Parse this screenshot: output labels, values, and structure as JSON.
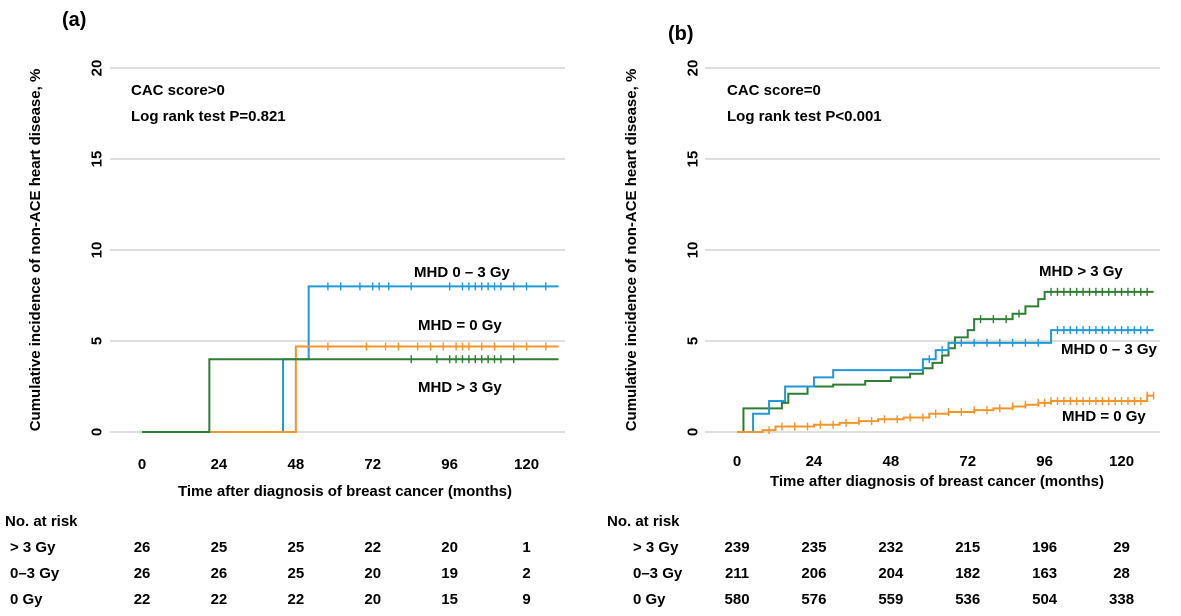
{
  "colors": {
    "MHD > 3 Gy": "#2e7d32",
    "MHD 0 – 3 Gy": "#1f9ad6",
    "MHD = 0 Gy": "#f0962a"
  },
  "chart_data": [
    {
      "type": "line",
      "panel_label": "(a)",
      "title": "",
      "xlabel": "Time after diagnosis of breast cancer (months)",
      "ylabel": "Cumulative incidence of non-ACE heart disease, %",
      "xlim": [
        -10,
        132
      ],
      "ylim": [
        0,
        20
      ],
      "xticks": [
        0,
        24,
        48,
        72,
        96,
        120
      ],
      "yticks": [
        0,
        5,
        10,
        15,
        20
      ],
      "grid": "horizontal",
      "annotation": [
        "CAC score>0",
        "Log rank test P=0.821"
      ],
      "series": [
        {
          "name": "MHD 0 – 3 Gy",
          "steps": [
            [
              0,
              0
            ],
            [
              44,
              4
            ],
            [
              52,
              8
            ]
          ],
          "end_x": 130,
          "censors": [
            58,
            62,
            68,
            72,
            74,
            77,
            84,
            96,
            100,
            102,
            104,
            106,
            108,
            110,
            112,
            116,
            120,
            126
          ]
        },
        {
          "name": "MHD = 0 Gy",
          "steps": [
            [
              0,
              0
            ],
            [
              48,
              4.7
            ]
          ],
          "end_x": 130,
          "censors": [
            58,
            70,
            76,
            80,
            86,
            90,
            94,
            98,
            100,
            102,
            106,
            110,
            116,
            120,
            126
          ]
        },
        {
          "name": "MHD > 3 Gy",
          "steps": [
            [
              0,
              0
            ],
            [
              21,
              4
            ]
          ],
          "end_x": 130,
          "censors": [
            84,
            92,
            96,
            98,
            100,
            102,
            104,
            106,
            108,
            110,
            112,
            116
          ]
        }
      ],
      "curve_labels": [
        "MHD 0 – 3 Gy",
        "MHD = 0 Gy",
        "MHD > 3 Gy"
      ],
      "risk_table": {
        "title": "No. at risk",
        "times": [
          0,
          24,
          48,
          72,
          96,
          120
        ],
        "rows": [
          {
            "label": "> 3 Gy",
            "values": [
              26,
              25,
              25,
              22,
              20,
              1
            ]
          },
          {
            "label": "0–3 Gy",
            "values": [
              26,
              26,
              25,
              20,
              19,
              2
            ]
          },
          {
            "label": "0 Gy",
            "values": [
              22,
              22,
              22,
              20,
              15,
              9
            ]
          }
        ]
      }
    },
    {
      "type": "line",
      "panel_label": "(b)",
      "title": "",
      "xlabel": "Time after diagnosis of breast cancer (months)",
      "ylabel": "Cumulative incidence of non-ACE heart disease, %",
      "xlim": [
        -10,
        132
      ],
      "ylim": [
        0,
        20
      ],
      "xticks": [
        0,
        24,
        48,
        72,
        96,
        120
      ],
      "yticks": [
        0,
        5,
        10,
        15,
        20
      ],
      "grid": "horizontal",
      "annotation": [
        "CAC score=0",
        "Log rank test P<0.001"
      ],
      "series": [
        {
          "name": "MHD > 3 Gy",
          "steps": [
            [
              0,
              0
            ],
            [
              2,
              1.3
            ],
            [
              8,
              1.3
            ],
            [
              14,
              1.6
            ],
            [
              16,
              2.1
            ],
            [
              22,
              2.5
            ],
            [
              30,
              2.6
            ],
            [
              40,
              2.8
            ],
            [
              48,
              3.0
            ],
            [
              54,
              3.2
            ],
            [
              58,
              3.5
            ],
            [
              61,
              3.8
            ],
            [
              64,
              4.2
            ],
            [
              66,
              4.6
            ],
            [
              68,
              5.2
            ],
            [
              72,
              5.6
            ],
            [
              74,
              6.2
            ],
            [
              86,
              6.5
            ],
            [
              90,
              6.9
            ],
            [
              94,
              7.3
            ],
            [
              96,
              7.7
            ]
          ],
          "end_x": 130,
          "censors": [
            76,
            80,
            84,
            88,
            98,
            100,
            102,
            104,
            106,
            108,
            110,
            112,
            114,
            116,
            118,
            120,
            122,
            124,
            126,
            128
          ]
        },
        {
          "name": "MHD 0 – 3 Gy",
          "steps": [
            [
              0,
              0
            ],
            [
              5,
              1.0
            ],
            [
              10,
              1.7
            ],
            [
              15,
              2.5
            ],
            [
              24,
              3.0
            ],
            [
              30,
              3.4
            ],
            [
              58,
              4.0
            ],
            [
              62,
              4.5
            ],
            [
              66,
              4.9
            ],
            [
              98,
              5.6
            ]
          ],
          "end_x": 130,
          "censors": [
            60,
            64,
            70,
            74,
            78,
            82,
            86,
            90,
            94,
            100,
            102,
            104,
            106,
            108,
            110,
            112,
            114,
            116,
            118,
            120,
            122,
            124,
            126,
            128
          ]
        },
        {
          "name": "MHD = 0 Gy",
          "steps": [
            [
              0,
              0
            ],
            [
              8,
              0.1
            ],
            [
              12,
              0.3
            ],
            [
              24,
              0.4
            ],
            [
              32,
              0.5
            ],
            [
              38,
              0.6
            ],
            [
              44,
              0.7
            ],
            [
              52,
              0.8
            ],
            [
              60,
              1.0
            ],
            [
              66,
              1.1
            ],
            [
              74,
              1.2
            ],
            [
              80,
              1.3
            ],
            [
              86,
              1.4
            ],
            [
              90,
              1.5
            ],
            [
              94,
              1.6
            ],
            [
              98,
              1.7
            ],
            [
              128,
              2.0
            ]
          ],
          "end_x": 130,
          "censors": [
            10,
            14,
            18,
            22,
            26,
            30,
            34,
            38,
            42,
            46,
            50,
            54,
            58,
            62,
            66,
            70,
            74,
            78,
            82,
            86,
            90,
            94,
            96,
            98,
            100,
            102,
            104,
            106,
            108,
            110,
            112,
            114,
            116,
            118,
            120,
            122,
            124,
            126,
            128,
            130
          ]
        }
      ],
      "curve_labels": [
        "MHD > 3 Gy",
        "MHD 0 – 3 Gy",
        "MHD = 0 Gy"
      ],
      "risk_table": {
        "title": "No. at risk",
        "times": [
          0,
          24,
          48,
          72,
          96,
          120
        ],
        "rows": [
          {
            "label": "> 3 Gy",
            "values": [
              239,
              235,
              232,
              215,
              196,
              29
            ]
          },
          {
            "label": "0–3 Gy",
            "values": [
              211,
              206,
              204,
              182,
              163,
              28
            ]
          },
          {
            "label": "0 Gy",
            "values": [
              580,
              576,
              559,
              536,
              504,
              338
            ]
          }
        ]
      }
    }
  ]
}
